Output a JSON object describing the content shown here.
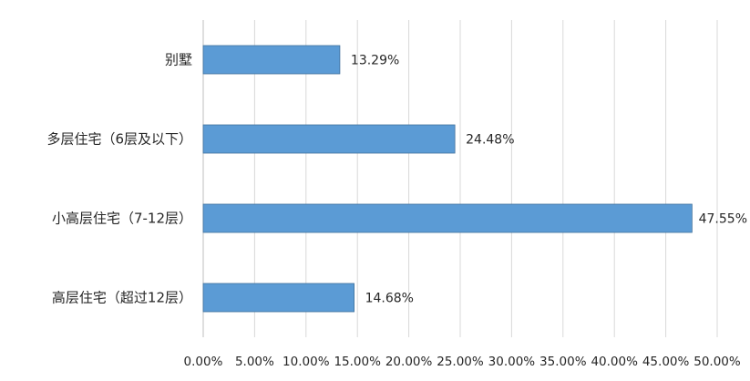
{
  "chart_data": {
    "type": "bar",
    "orientation": "horizontal",
    "categories": [
      "别墅",
      "多层住宅（6层及以下）",
      "小高层住宅（7-12层）",
      "高层住宅（超过12层）"
    ],
    "values": [
      13.29,
      24.48,
      47.55,
      14.68
    ],
    "data_labels": [
      "13.29%",
      "24.48%",
      "47.55%",
      "14.68%"
    ],
    "x_ticks": [
      "0.00%",
      "5.00%",
      "10.00%",
      "15.00%",
      "20.00%",
      "25.00%",
      "30.00%",
      "35.00%",
      "40.00%",
      "45.00%",
      "50.00%"
    ],
    "xlim": [
      0,
      50
    ],
    "grid": true,
    "legend": "none",
    "bar_color": "#5b9bd5"
  }
}
